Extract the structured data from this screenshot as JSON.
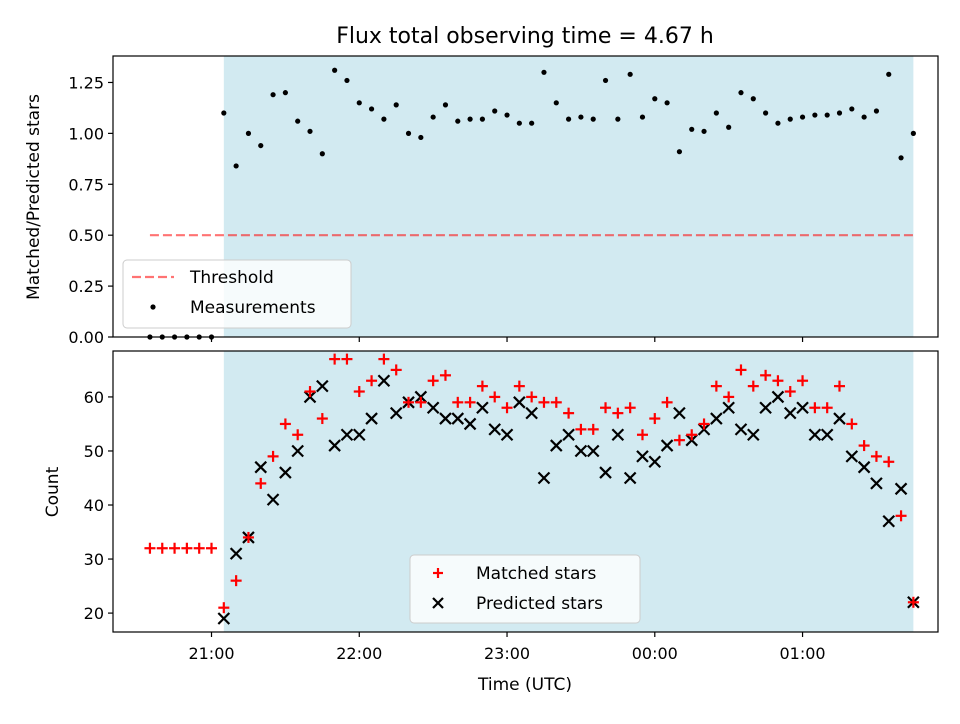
{
  "title": "Flux total observing time = 4.67 h",
  "xlabel": "Time (UTC)",
  "x_tick_labels": [
    "21:00",
    "22:00",
    "23:00",
    "00:00",
    "01:00"
  ],
  "colors": {
    "shade": "#add8e6",
    "threshold": "#ff0000",
    "measurements": "#000000",
    "matched": "#ff0000",
    "predicted": "#000000"
  },
  "chart_data": [
    {
      "type": "scatter",
      "ylabel": "Matched/Predicted stars",
      "ylim": [
        0,
        1.38
      ],
      "y_tick_labels": [
        "0.00",
        "0.25",
        "0.50",
        "0.75",
        "1.00",
        "1.25"
      ],
      "grid": false,
      "legend_position": "lower-left",
      "legend": [
        "Threshold",
        "Measurements"
      ],
      "shaded_interval": [
        "21:05",
        "01:45"
      ],
      "threshold": {
        "name": "Threshold",
        "y": 0.5,
        "x_from": "20:35",
        "x_to": "01:45"
      },
      "series": [
        {
          "name": "Measurements",
          "x": [
            "20:35",
            "20:40",
            "20:45",
            "20:50",
            "20:55",
            "21:00",
            "21:05",
            "21:10",
            "21:15",
            "21:20",
            "21:25",
            "21:30",
            "21:35",
            "21:40",
            "21:45",
            "21:50",
            "21:55",
            "22:00",
            "22:05",
            "22:10",
            "22:15",
            "22:20",
            "22:25",
            "22:30",
            "22:35",
            "22:40",
            "22:45",
            "22:50",
            "22:55",
            "23:00",
            "23:05",
            "23:10",
            "23:15",
            "23:20",
            "23:25",
            "23:30",
            "23:35",
            "23:40",
            "23:45",
            "23:50",
            "23:55",
            "00:00",
            "00:05",
            "00:10",
            "00:15",
            "00:20",
            "00:25",
            "00:30",
            "00:35",
            "00:40",
            "00:45",
            "00:50",
            "00:55",
            "01:00",
            "01:05",
            "01:10",
            "01:15",
            "01:20",
            "01:25",
            "01:30",
            "01:35",
            "01:40",
            "01:45"
          ],
          "y": [
            0.0,
            0.0,
            0.0,
            0.0,
            0.0,
            0.0,
            1.1,
            0.84,
            1.0,
            0.94,
            1.19,
            1.2,
            1.06,
            1.01,
            0.9,
            1.31,
            1.26,
            1.15,
            1.12,
            1.07,
            1.14,
            1.0,
            0.98,
            1.08,
            1.14,
            1.06,
            1.07,
            1.07,
            1.11,
            1.09,
            1.05,
            1.05,
            1.3,
            1.15,
            1.07,
            1.08,
            1.07,
            1.26,
            1.07,
            1.29,
            1.08,
            1.17,
            1.15,
            0.91,
            1.02,
            1.01,
            1.1,
            1.03,
            1.2,
            1.17,
            1.1,
            1.05,
            1.07,
            1.08,
            1.09,
            1.09,
            1.1,
            1.12,
            1.08,
            1.11,
            1.29,
            0.88,
            1.0
          ]
        }
      ]
    },
    {
      "type": "scatter",
      "ylabel": "Count",
      "ylim": [
        16.5,
        68.5
      ],
      "y_tick_labels": [
        "20",
        "30",
        "40",
        "50",
        "60"
      ],
      "grid": false,
      "legend_position": "lower-center",
      "legend": [
        "Matched stars",
        "Predicted stars"
      ],
      "shaded_interval": [
        "21:05",
        "01:45"
      ],
      "series": [
        {
          "name": "Matched stars",
          "x": [
            "20:35",
            "20:40",
            "20:45",
            "20:50",
            "20:55",
            "21:00",
            "21:05",
            "21:10",
            "21:15",
            "21:20",
            "21:25",
            "21:30",
            "21:35",
            "21:40",
            "21:45",
            "21:50",
            "21:55",
            "22:00",
            "22:05",
            "22:10",
            "22:15",
            "22:20",
            "22:25",
            "22:30",
            "22:35",
            "22:40",
            "22:45",
            "22:50",
            "22:55",
            "23:00",
            "23:05",
            "23:10",
            "23:15",
            "23:20",
            "23:25",
            "23:30",
            "23:35",
            "23:40",
            "23:45",
            "23:50",
            "23:55",
            "00:00",
            "00:05",
            "00:10",
            "00:15",
            "00:20",
            "00:25",
            "00:30",
            "00:35",
            "00:40",
            "00:45",
            "00:50",
            "00:55",
            "01:00",
            "01:05",
            "01:10",
            "01:15",
            "01:20",
            "01:25",
            "01:30",
            "01:35",
            "01:40",
            "01:45"
          ],
          "y": [
            32,
            32,
            32,
            32,
            32,
            32,
            21,
            26,
            34,
            44,
            49,
            55,
            53,
            61,
            56,
            67,
            67,
            61,
            63,
            67,
            65,
            59,
            59,
            63,
            64,
            59,
            59,
            62,
            60,
            58,
            62,
            60,
            59,
            59,
            57,
            54,
            54,
            58,
            57,
            58,
            53,
            56,
            59,
            52,
            53,
            55,
            62,
            60,
            65,
            62,
            64,
            63,
            61,
            63,
            58,
            58,
            62,
            55,
            51,
            49,
            48,
            38,
            22
          ]
        },
        {
          "name": "Predicted stars",
          "x": [
            "21:05",
            "21:10",
            "21:15",
            "21:20",
            "21:25",
            "21:30",
            "21:35",
            "21:40",
            "21:45",
            "21:50",
            "21:55",
            "22:00",
            "22:05",
            "22:10",
            "22:15",
            "22:20",
            "22:25",
            "22:30",
            "22:35",
            "22:40",
            "22:45",
            "22:50",
            "22:55",
            "23:00",
            "23:05",
            "23:10",
            "23:15",
            "23:20",
            "23:25",
            "23:30",
            "23:35",
            "23:40",
            "23:45",
            "23:50",
            "23:55",
            "00:00",
            "00:05",
            "00:10",
            "00:15",
            "00:20",
            "00:25",
            "00:30",
            "00:35",
            "00:40",
            "00:45",
            "00:50",
            "00:55",
            "01:00",
            "01:05",
            "01:10",
            "01:15",
            "01:20",
            "01:25",
            "01:30",
            "01:35",
            "01:40",
            "01:45"
          ],
          "y": [
            19,
            31,
            34,
            47,
            41,
            46,
            50,
            60,
            62,
            51,
            53,
            53,
            56,
            63,
            57,
            59,
            60,
            58,
            56,
            56,
            55,
            58,
            54,
            53,
            59,
            57,
            45,
            51,
            53,
            50,
            50,
            46,
            53,
            45,
            49,
            48,
            51,
            57,
            52,
            54,
            56,
            58,
            54,
            53,
            58,
            60,
            57,
            58,
            53,
            53,
            56,
            49,
            47,
            44,
            37,
            43,
            22
          ]
        }
      ]
    }
  ]
}
